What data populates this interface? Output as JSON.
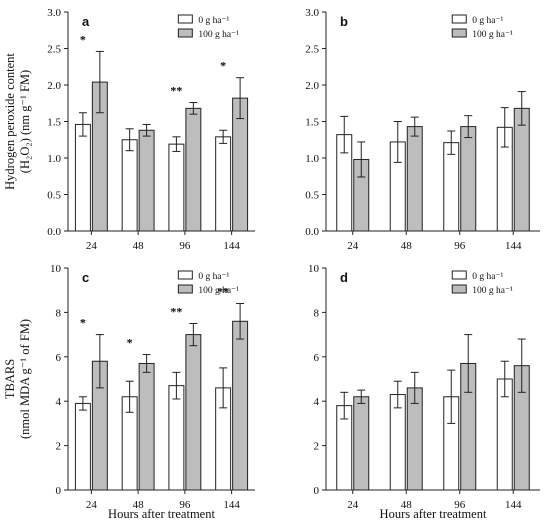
{
  "chart_data": [
    {
      "type": "bar",
      "panel": "a",
      "categories": [
        "24",
        "48",
        "96",
        "144"
      ],
      "ylim": [
        0,
        3.0
      ],
      "yticks": [
        "0.0",
        "0.5",
        "1.0",
        "1.5",
        "2.0",
        "2.5",
        "3.0"
      ],
      "ylabel_lines": [
        "Hydrogen peroxide content",
        "(H₂O₂) (nm g⁻¹ FM)"
      ],
      "xlabel": "",
      "legend": [
        "0 g ha⁻¹",
        "100 g ha⁻¹"
      ],
      "series": [
        {
          "name": "0 g ha⁻¹",
          "values": [
            1.46,
            1.25,
            1.19,
            1.29
          ],
          "errors": [
            0.16,
            0.15,
            0.1,
            0.09
          ]
        },
        {
          "name": "100 g ha⁻¹",
          "values": [
            2.04,
            1.38,
            1.68,
            1.82
          ],
          "errors": [
            0.42,
            0.08,
            0.08,
            0.28
          ]
        }
      ],
      "significance": [
        "*",
        "",
        "**",
        "*"
      ]
    },
    {
      "type": "bar",
      "panel": "b",
      "categories": [
        "24",
        "48",
        "96",
        "144"
      ],
      "ylim": [
        0,
        3.0
      ],
      "yticks": [
        "0.0",
        "0.5",
        "1.0",
        "1.5",
        "2.0",
        "2.5",
        "3.0"
      ],
      "ylabel_lines": [],
      "xlabel": "",
      "legend": [
        "0 g ha⁻¹",
        "100 g ha⁻¹"
      ],
      "series": [
        {
          "name": "0 g ha⁻¹",
          "values": [
            1.32,
            1.22,
            1.21,
            1.42
          ],
          "errors": [
            0.25,
            0.28,
            0.16,
            0.27
          ]
        },
        {
          "name": "100 g ha⁻¹",
          "values": [
            0.98,
            1.43,
            1.43,
            1.68
          ],
          "errors": [
            0.24,
            0.13,
            0.15,
            0.23
          ]
        }
      ],
      "significance": [
        "",
        "",
        "",
        ""
      ]
    },
    {
      "type": "bar",
      "panel": "c",
      "categories": [
        "24",
        "48",
        "96",
        "144"
      ],
      "ylim": [
        0,
        10
      ],
      "yticks": [
        "0",
        "2",
        "4",
        "6",
        "8",
        "10"
      ],
      "ylabel_lines": [
        "TBARS",
        "(nmol MDA g⁻¹ of FM)"
      ],
      "xlabel": "Hours after treatment",
      "legend": [
        "0 g ha⁻¹",
        "100 g ha⁻¹"
      ],
      "series": [
        {
          "name": "0 g ha⁻¹",
          "values": [
            3.9,
            4.2,
            4.7,
            4.6
          ],
          "errors": [
            0.3,
            0.7,
            0.6,
            0.9
          ]
        },
        {
          "name": "100 g ha⁻¹",
          "values": [
            5.8,
            5.7,
            7.0,
            7.6
          ],
          "errors": [
            1.2,
            0.4,
            0.5,
            0.8
          ]
        }
      ],
      "significance": [
        "*",
        "*",
        "**",
        "**"
      ]
    },
    {
      "type": "bar",
      "panel": "d",
      "categories": [
        "24",
        "48",
        "96",
        "144"
      ],
      "ylim": [
        0,
        10
      ],
      "yticks": [
        "0",
        "2",
        "4",
        "6",
        "8",
        "10"
      ],
      "ylabel_lines": [],
      "xlabel": "Hours after treatment",
      "legend": [
        "0 g ha⁻¹",
        "100 g ha⁻¹"
      ],
      "series": [
        {
          "name": "0 g ha⁻¹",
          "values": [
            3.8,
            4.3,
            4.2,
            5.0
          ],
          "errors": [
            0.6,
            0.6,
            1.2,
            0.8
          ]
        },
        {
          "name": "100 g ha⁻¹",
          "values": [
            4.2,
            4.6,
            5.7,
            5.6
          ],
          "errors": [
            0.3,
            0.7,
            1.3,
            1.2
          ]
        }
      ],
      "significance": [
        "",
        "",
        "",
        ""
      ]
    }
  ],
  "colors": {
    "series_0_fill": "#ffffff",
    "series_1_fill": "#bdbdbd",
    "stroke": "#222222"
  }
}
